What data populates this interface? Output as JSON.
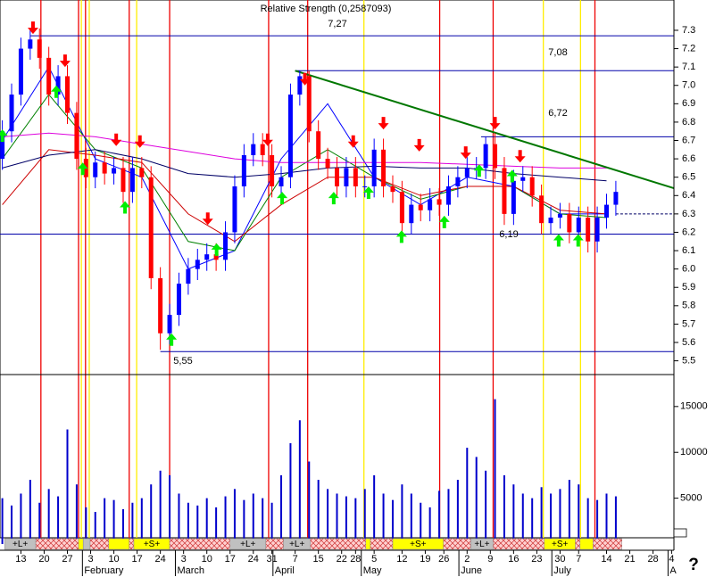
{
  "chart_data": {
    "type": "candlestick",
    "title": "Relative Strength (0,2587093)",
    "xlim": [
      -0.5,
      144.5
    ],
    "xticks": [
      {
        "value": 4,
        "label": "13"
      },
      {
        "value": 9,
        "label": "20"
      },
      {
        "value": 14,
        "label": "27"
      },
      {
        "value": 19,
        "label": "3"
      },
      {
        "value": 24,
        "label": "10"
      },
      {
        "value": 29,
        "label": "17"
      },
      {
        "value": 34,
        "label": "24"
      },
      {
        "value": 39,
        "label": "3"
      },
      {
        "value": 44,
        "label": "10"
      },
      {
        "value": 49,
        "label": "17"
      },
      {
        "value": 54,
        "label": "24"
      },
      {
        "value": 58,
        "label": "31"
      },
      {
        "value": 63,
        "label": "7"
      },
      {
        "value": 68,
        "label": "15"
      },
      {
        "value": 73,
        "label": "22"
      },
      {
        "value": 76,
        "label": "28"
      },
      {
        "value": 80,
        "label": "5"
      },
      {
        "value": 86,
        "label": "12"
      },
      {
        "value": 91,
        "label": "19"
      },
      {
        "value": 95,
        "label": "26"
      },
      {
        "value": 100,
        "label": "2"
      },
      {
        "value": 105,
        "label": "9"
      },
      {
        "value": 110,
        "label": "16"
      },
      {
        "value": 115,
        "label": "23"
      },
      {
        "value": 120,
        "label": "30"
      },
      {
        "value": 124,
        "label": "7"
      },
      {
        "value": 130,
        "label": "14"
      },
      {
        "value": 135,
        "label": "21"
      },
      {
        "value": 140,
        "label": "28"
      },
      {
        "value": 144,
        "label": "4"
      }
    ],
    "month_ticks": [
      {
        "value": 18,
        "label": "February"
      },
      {
        "value": 38,
        "label": "March"
      },
      {
        "value": 59,
        "label": "April"
      },
      {
        "value": 78,
        "label": "May"
      },
      {
        "value": 99,
        "label": "June"
      },
      {
        "value": 119,
        "label": "July"
      },
      {
        "value": 144,
        "label": "A"
      }
    ],
    "ylim": [
      5.43,
      7.465
    ],
    "yticks": [
      7.3,
      7.2,
      7.1,
      {
        "value": 7,
        "label": "7.0"
      },
      6.9,
      6.8,
      6.7,
      6.6,
      6.5,
      6.4,
      6.3,
      6.2,
      6.1,
      {
        "value": 6,
        "label": "6.0"
      },
      5.9,
      5.8,
      5.7,
      5.6,
      5.5
    ],
    "candles": {
      "up_color": "#0000ff",
      "down_color": "#ff0000",
      "x": [
        0,
        2,
        4,
        6,
        8,
        10,
        12,
        14,
        16,
        18,
        20,
        22,
        24,
        26,
        28,
        30,
        32,
        34,
        36,
        38,
        40,
        42,
        44,
        46,
        48,
        50,
        52,
        54,
        56,
        58,
        60,
        62,
        64,
        66,
        68,
        70,
        72,
        74,
        76,
        78,
        80,
        82,
        84,
        86,
        88,
        90,
        92,
        94,
        96,
        98,
        100,
        102,
        104,
        106,
        108,
        110,
        112,
        114,
        116,
        118,
        120,
        122,
        124,
        126,
        128,
        130,
        132
      ],
      "open": [
        6.6,
        6.75,
        6.95,
        7.2,
        7.25,
        7.15,
        6.95,
        7.05,
        6.85,
        6.6,
        6.5,
        6.58,
        6.52,
        6.55,
        6.42,
        6.55,
        6.5,
        5.95,
        5.65,
        5.75,
        5.92,
        6.0,
        6.05,
        6.08,
        6.05,
        6.2,
        6.45,
        6.62,
        6.68,
        6.62,
        6.45,
        6.5,
        6.95,
        7.05,
        6.75,
        6.6,
        6.55,
        6.45,
        6.55,
        6.45,
        6.45,
        6.65,
        6.45,
        6.42,
        6.25,
        6.35,
        6.32,
        6.38,
        6.35,
        6.45,
        6.5,
        6.55,
        6.55,
        6.68,
        6.55,
        6.3,
        6.48,
        6.5,
        6.4,
        6.25,
        6.28,
        6.3,
        6.2,
        6.28,
        6.15,
        6.28,
        6.35
      ],
      "high": [
        6.81,
        7.01,
        7.26,
        7.31,
        7.31,
        7.21,
        7.11,
        7.11,
        6.91,
        6.66,
        6.64,
        6.64,
        6.61,
        6.61,
        6.61,
        6.61,
        6.56,
        6.01,
        5.81,
        5.98,
        6.06,
        6.11,
        6.14,
        6.14,
        6.26,
        6.51,
        6.68,
        6.74,
        6.74,
        6.68,
        6.56,
        7.01,
        7.08,
        7.08,
        6.81,
        6.66,
        6.61,
        6.61,
        6.61,
        6.51,
        6.71,
        6.71,
        6.51,
        6.48,
        6.41,
        6.41,
        6.44,
        6.44,
        6.51,
        6.56,
        6.61,
        6.61,
        6.72,
        6.74,
        6.61,
        6.54,
        6.56,
        6.56,
        6.46,
        6.34,
        6.36,
        6.36,
        6.34,
        6.34,
        6.34,
        6.41,
        6.48
      ],
      "low": [
        6.54,
        6.69,
        6.89,
        7.14,
        7.09,
        6.89,
        6.89,
        6.79,
        6.54,
        6.44,
        6.44,
        6.46,
        6.46,
        6.36,
        6.36,
        6.44,
        5.89,
        5.56,
        5.59,
        5.69,
        5.86,
        5.94,
        5.99,
        5.99,
        5.99,
        6.14,
        6.39,
        6.56,
        6.56,
        6.39,
        6.39,
        6.44,
        6.89,
        6.69,
        6.54,
        6.49,
        6.39,
        6.39,
        6.39,
        6.39,
        6.39,
        6.39,
        6.36,
        6.19,
        6.19,
        6.26,
        6.26,
        6.29,
        6.29,
        6.39,
        6.44,
        6.49,
        6.49,
        6.49,
        6.24,
        6.24,
        6.42,
        6.34,
        6.19,
        6.19,
        6.22,
        6.14,
        6.14,
        6.09,
        6.09,
        6.22,
        6.29
      ],
      "close": [
        6.75,
        6.95,
        7.2,
        7.25,
        7.15,
        6.95,
        7.05,
        6.85,
        6.6,
        6.5,
        6.58,
        6.52,
        6.55,
        6.42,
        6.55,
        6.5,
        5.95,
        5.65,
        5.75,
        5.92,
        6.0,
        6.05,
        6.08,
        6.05,
        6.2,
        6.45,
        6.62,
        6.68,
        6.62,
        6.45,
        6.5,
        6.95,
        7.05,
        6.75,
        6.6,
        6.55,
        6.45,
        6.55,
        6.45,
        6.45,
        6.65,
        6.45,
        6.42,
        6.25,
        6.35,
        6.32,
        6.38,
        6.35,
        6.45,
        6.5,
        6.55,
        6.55,
        6.68,
        6.55,
        6.3,
        6.48,
        6.5,
        6.4,
        6.25,
        6.28,
        6.3,
        6.2,
        6.28,
        6.15,
        6.28,
        6.35,
        6.42
      ]
    },
    "ma_x": [
      0,
      10,
      20,
      30,
      40,
      50,
      60,
      70,
      80,
      90,
      100,
      110,
      120,
      130
    ],
    "moving_averages": [
      {
        "color": "#0000ff",
        "values": [
          6.7,
          7.1,
          6.6,
          6.5,
          6.0,
          6.1,
          6.6,
          6.9,
          6.5,
          6.35,
          6.5,
          6.45,
          6.3,
          6.3
        ]
      },
      {
        "color": "#008000",
        "values": [
          6.6,
          6.95,
          6.65,
          6.55,
          6.15,
          6.1,
          6.5,
          6.65,
          6.5,
          6.38,
          6.45,
          6.45,
          6.3,
          6.28
        ]
      },
      {
        "color": "#cc0000",
        "values": [
          6.35,
          6.65,
          6.62,
          6.58,
          6.3,
          6.15,
          6.35,
          6.5,
          6.5,
          6.4,
          6.45,
          6.45,
          6.32,
          6.3
        ]
      },
      {
        "color": "#000066",
        "values": [
          6.55,
          6.62,
          6.65,
          6.6,
          6.52,
          6.5,
          6.52,
          6.55,
          6.56,
          6.55,
          6.55,
          6.52,
          6.5,
          6.48
        ]
      },
      {
        "color": "#dd00dd",
        "values": [
          6.72,
          6.74,
          6.72,
          6.68,
          6.64,
          6.6,
          6.58,
          6.58,
          6.58,
          6.58,
          6.57,
          6.56,
          6.55,
          6.55
        ]
      }
    ],
    "levels": [
      {
        "value": 7.27,
        "label": "7,27",
        "from": 6
      },
      {
        "value": 7.08,
        "label": "7,08",
        "from": 63
      },
      {
        "value": 6.72,
        "label": "6,72",
        "from": 103
      },
      {
        "value": 6.19,
        "label": "6,19",
        "from": -0.5
      },
      {
        "value": 5.55,
        "label": "5,55",
        "from": 34
      }
    ],
    "level_color": "#0000aa",
    "dashed_level": {
      "value": 6.3,
      "from": 132
    },
    "trendline": {
      "color": "#007700",
      "x": [
        63,
        144.5
      ],
      "values": [
        7.08,
        6.44
      ]
    },
    "sell_signals": {
      "color": "#ff0000",
      "x": [
        6.6,
        13.5,
        24.5,
        29.6,
        44.2,
        57.1,
        65.1,
        75.5,
        82,
        89.7,
        99.7,
        106,
        111.4
      ],
      "values": [
        7.28,
        7.1,
        6.67,
        6.66,
        6.24,
        6.67,
        7.0,
        6.66,
        6.76,
        6.64,
        6.6,
        6.76,
        6.58
      ]
    },
    "buy_signals": {
      "color": "#00ee00",
      "x": [
        0,
        11.6,
        17.3,
        26.4,
        36.4,
        46.1,
        60.2,
        71.3,
        78.8,
        85.9,
        95.1,
        102.6,
        109.7,
        119.7,
        123.9
      ],
      "values": [
        6.76,
        7.0,
        6.58,
        6.37,
        5.65,
        6.14,
        6.42,
        6.42,
        6.45,
        6.21,
        6.29,
        6.57,
        6.54,
        6.19,
        6.19
      ]
    },
    "signal_lines": [
      {
        "color": "#ee0000",
        "x": [
          8.3,
          16.4,
          17.9,
          27.3,
          36,
          57.3,
          65.7,
          94.1,
          105.6,
          127.5
        ]
      },
      {
        "color": "#ffee00",
        "x": [
          17,
          18.7,
          28.9,
          77.8,
          116.4,
          124.4
        ]
      }
    ],
    "volume": {
      "color": "#0000cc",
      "ylim": [
        0,
        18000
      ],
      "yticks": [
        5000,
        10000,
        15000
      ],
      "values": [
        5000,
        4200,
        5500,
        7000,
        4500,
        6000,
        5200,
        12500,
        6500,
        4000,
        3500,
        5000,
        4800,
        3800,
        4500,
        5000,
        6500,
        8000,
        7500,
        5500,
        4500,
        4200,
        5000,
        4000,
        5200,
        6000,
        4800,
        5500,
        5000,
        4500,
        7500,
        11000,
        13500,
        9000,
        7000,
        6000,
        5500,
        5200,
        5000,
        6000,
        7500,
        5500,
        4800,
        6500,
        5500,
        4500,
        4000,
        5800,
        6000,
        7000,
        10500,
        9500,
        8000,
        15800,
        7500,
        6500,
        5500,
        5000,
        6200,
        5500,
        6000,
        7000,
        6500,
        5000,
        4800,
        5500,
        5200
      ]
    },
    "bands": [
      {
        "from": 0.5,
        "to": 7.2,
        "color": "#c0c0c0",
        "label": "+L+"
      },
      {
        "from": 7.2,
        "to": 16.4,
        "color": "#ffd0d0",
        "hatched": true
      },
      {
        "from": 16.4,
        "to": 17.4,
        "color": "#ffff00"
      },
      {
        "from": 17.4,
        "to": 18.9,
        "color": "#c0c0c0"
      },
      {
        "from": 18.9,
        "to": 22.9,
        "color": "#ffd0d0",
        "hatched": true
      },
      {
        "from": 22.9,
        "to": 27.3,
        "color": "#ffff00"
      },
      {
        "from": 27.3,
        "to": 28.3,
        "color": "#ffd0d0",
        "hatched": true
      },
      {
        "from": 28.3,
        "to": 36,
        "color": "#ffff00",
        "label": "+S+"
      },
      {
        "from": 36,
        "to": 49,
        "color": "#ffd0d0",
        "hatched": true
      },
      {
        "from": 49,
        "to": 56.7,
        "color": "#c0c0c0",
        "label": "+L+"
      },
      {
        "from": 56.7,
        "to": 60.5,
        "color": "#ffd0d0",
        "hatched": true
      },
      {
        "from": 60.5,
        "to": 66.3,
        "color": "#c0c0c0",
        "label": "+L+"
      },
      {
        "from": 66.3,
        "to": 78.2,
        "color": "#ffd0d0",
        "hatched": true
      },
      {
        "from": 78.2,
        "to": 79.2,
        "color": "#ffff00"
      },
      {
        "from": 79.2,
        "to": 84,
        "color": "#ffd0d0",
        "hatched": true
      },
      {
        "from": 84,
        "to": 94.9,
        "color": "#ffff00",
        "label": "+S+"
      },
      {
        "from": 94.9,
        "to": 100.8,
        "color": "#ffd0d0",
        "hatched": true
      },
      {
        "from": 100.8,
        "to": 105.6,
        "color": "#c0c0c0",
        "label": "+L+"
      },
      {
        "from": 105.6,
        "to": 116.6,
        "color": "#ffd0d0",
        "hatched": true
      },
      {
        "from": 116.6,
        "to": 123.3,
        "color": "#ffff00",
        "label": "+S+"
      },
      {
        "from": 123.3,
        "to": 124.3,
        "color": "#ffd0d0",
        "hatched": true
      },
      {
        "from": 124.3,
        "to": 127.1,
        "color": "#ffff00"
      },
      {
        "from": 127.1,
        "to": 133.3,
        "color": "#ffd0d0",
        "hatched": true
      }
    ],
    "help_label": "?"
  }
}
